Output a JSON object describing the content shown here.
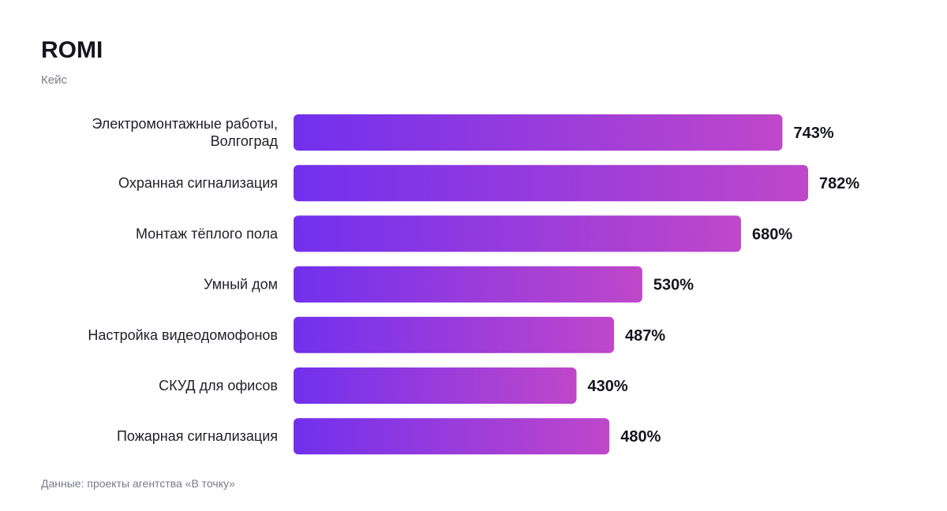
{
  "header": {
    "title": "ROMI",
    "subtitle": "Кейс"
  },
  "footer": {
    "source": "Данные: проекты агентства «В точку»"
  },
  "colors": {
    "bar_start": "#7130ee",
    "bar_end": "#bf47ca",
    "value_text": "#15151f",
    "label_text": "#1f1f29"
  },
  "chart_data": {
    "type": "bar",
    "orientation": "horizontal",
    "title": "ROMI",
    "subtitle": "Кейс",
    "xlabel": "",
    "ylabel": "",
    "grid": false,
    "legend": "none",
    "value_suffix": "%",
    "categories": [
      [
        "Электромонтажные работы,",
        "Волгоград"
      ],
      [
        "Охранная сигнализация"
      ],
      [
        "Монтаж тёплого пола"
      ],
      [
        "Умный дом"
      ],
      [
        "Настройка видеодомофонов"
      ],
      [
        "СКУД для офисов"
      ],
      [
        "Пожарная сигнализация"
      ]
    ],
    "values": [
      743,
      782,
      680,
      530,
      487,
      430,
      480
    ],
    "value_labels": [
      "743%",
      "782%",
      "680%",
      "530%",
      "487%",
      "430%",
      "480%"
    ],
    "xlim": [
      0,
      782
    ]
  }
}
